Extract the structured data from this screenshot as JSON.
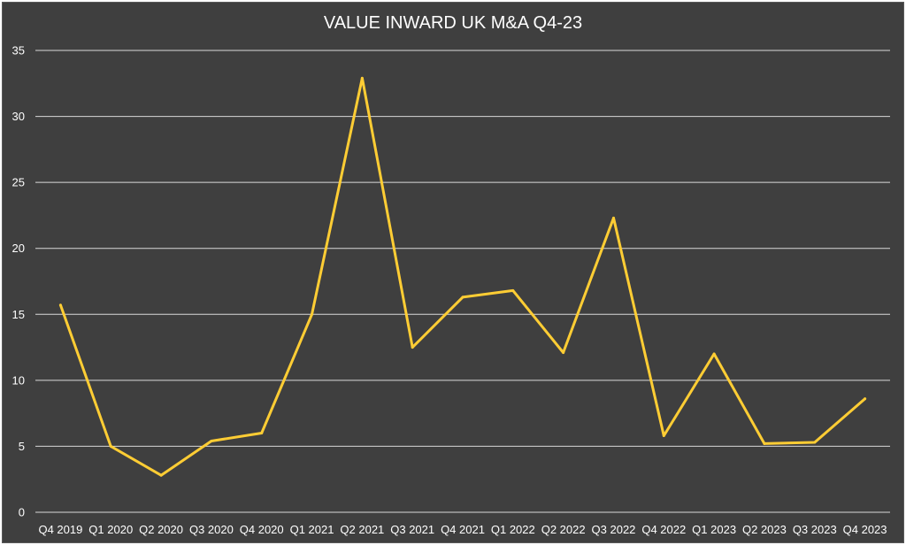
{
  "chart_data": {
    "type": "line",
    "title": "VALUE INWARD UK M&A Q4-23",
    "xlabel": "",
    "ylabel": "",
    "categories": [
      "Q4 2019",
      "Q1 2020",
      "Q2 2020",
      "Q3 2020",
      "Q4 2020",
      "Q1 2021",
      "Q2 2021",
      "Q3 2021",
      "Q4 2021",
      "Q1 2022",
      "Q2 2022",
      "Q3 2022",
      "Q4 2022",
      "Q1 2023",
      "Q2 2023",
      "Q3 2023",
      "Q4 2023"
    ],
    "series": [
      {
        "values": [
          15.7,
          5.0,
          2.8,
          5.4,
          6.0,
          15.0,
          32.9,
          12.5,
          16.3,
          16.8,
          12.1,
          22.3,
          5.8,
          12.0,
          5.2,
          5.3,
          8.6
        ]
      }
    ],
    "ylim": [
      0,
      35
    ],
    "yticks": [
      0,
      5,
      10,
      15,
      20,
      25,
      30,
      35
    ],
    "grid": true,
    "legend": "none",
    "colors": {
      "background": "#3f3f3f",
      "line": "#ffcd34",
      "grid": "#d9d9d9",
      "text": "#ffffff"
    }
  }
}
